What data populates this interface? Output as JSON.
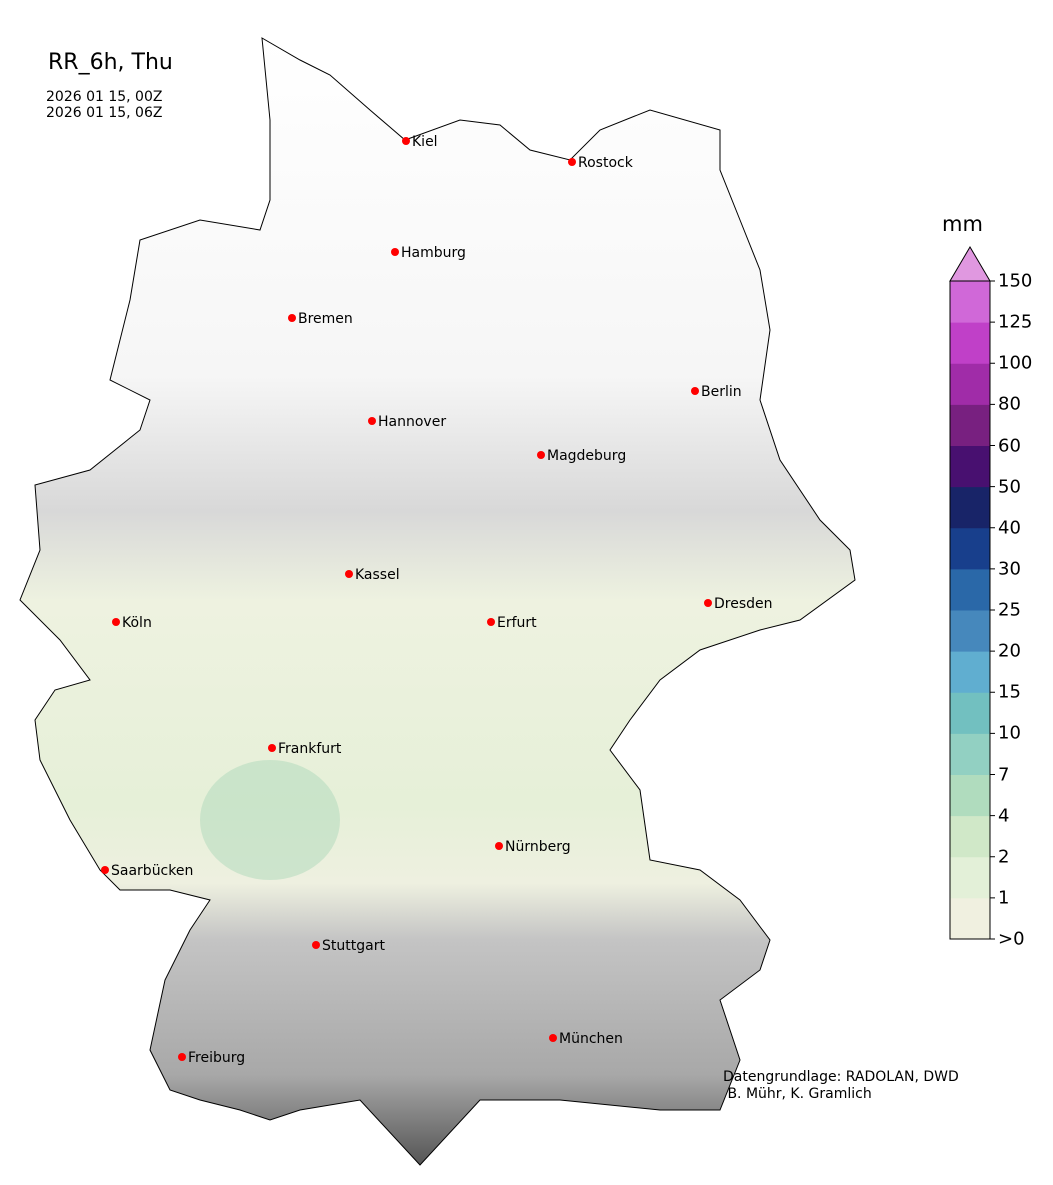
{
  "title": "RR_6h, Thu",
  "time_start": "2026 01 15, 00Z",
  "time_end": "2026 01 15, 06Z",
  "colorbar": {
    "unit": "mm",
    "ticks": [
      ">0",
      "1",
      "2",
      "4",
      "7",
      "10",
      "15",
      "20",
      "25",
      "30",
      "40",
      "50",
      "60",
      "80",
      "100",
      "125",
      "150"
    ],
    "colors": [
      "#f0f0e0",
      "#e3f0d8",
      "#d0e8c8",
      "#b0dcbe",
      "#92d0c2",
      "#72c0c0",
      "#60aed0",
      "#4688bc",
      "#2a68a8",
      "#183f8c",
      "#182468",
      "#481070",
      "#782080",
      "#a02ca8",
      "#c040c8",
      "#d068d8"
    ],
    "extend_color": "#e098e0"
  },
  "cities": [
    {
      "name": "Kiel"
    },
    {
      "name": "Rostock"
    },
    {
      "name": "Hamburg"
    },
    {
      "name": "Bremen"
    },
    {
      "name": "Berlin"
    },
    {
      "name": "Hannover"
    },
    {
      "name": "Magdeburg"
    },
    {
      "name": "Kassel"
    },
    {
      "name": "Dresden"
    },
    {
      "name": "Köln"
    },
    {
      "name": "Erfurt"
    },
    {
      "name": "Frankfurt"
    },
    {
      "name": "Nürnberg"
    },
    {
      "name": "Saarbücken"
    },
    {
      "name": "Stuttgart"
    },
    {
      "name": "München"
    },
    {
      "name": "Freiburg"
    }
  ],
  "city_marker_color": "#ff0000",
  "credit": "Datengrundlage: RADOLAN, DWD\n B. Mühr, K. Gramlich"
}
